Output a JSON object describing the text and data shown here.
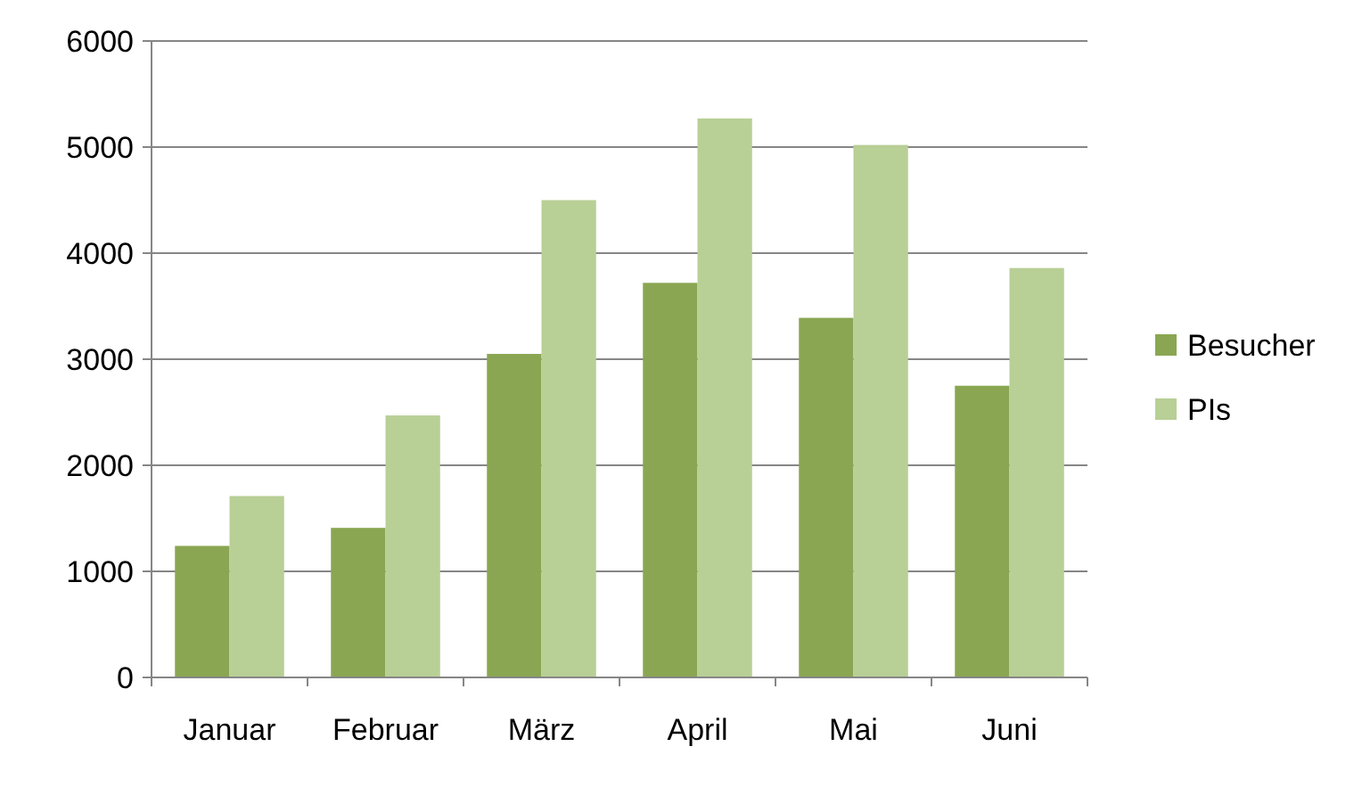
{
  "chart_data": {
    "type": "bar",
    "categories": [
      "Januar",
      "Februar",
      "März",
      "April",
      "Mai",
      "Juni"
    ],
    "series": [
      {
        "name": "Besucher",
        "color": "#8aa652",
        "values": [
          1240,
          1410,
          3050,
          3720,
          3390,
          2750
        ]
      },
      {
        "name": "PIs",
        "color": "#b8cf96",
        "values": [
          1710,
          2470,
          4500,
          5270,
          5020,
          3860
        ]
      }
    ],
    "ylim": [
      0,
      6000
    ],
    "yticks": [
      0,
      1000,
      2000,
      3000,
      4000,
      5000,
      6000
    ],
    "grid": "y",
    "legend": "right"
  }
}
